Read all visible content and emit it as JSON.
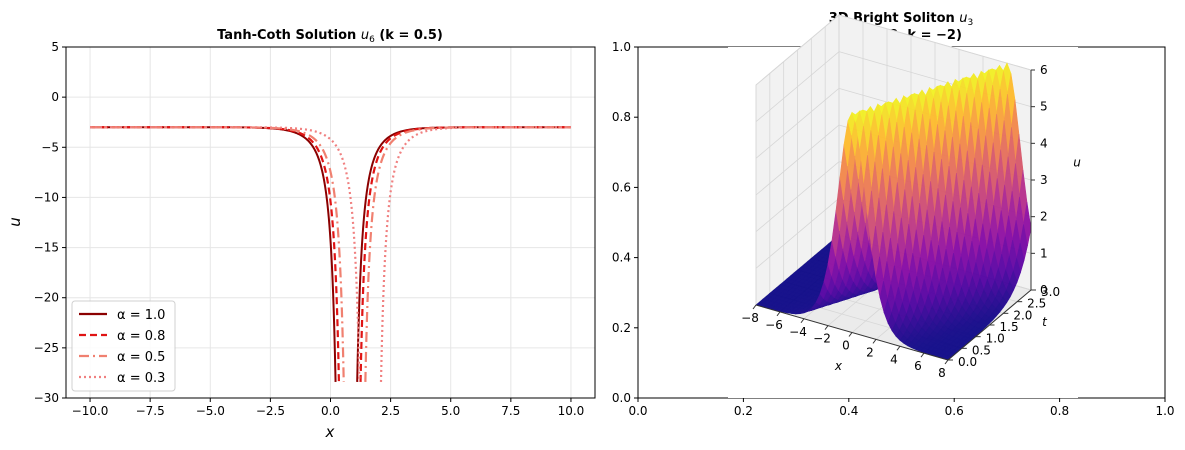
{
  "chart_data": [
    {
      "type": "line",
      "title": "Tanh-Coth Solution",
      "title_math": "u",
      "title_math_sub": "6",
      "title_param": "(k = 0.5)",
      "xlabel": "x",
      "ylabel": "u",
      "xlim": [
        -11,
        11
      ],
      "ylim": [
        -30,
        5
      ],
      "xticks": [
        -10.0,
        -7.5,
        -5.0,
        -2.5,
        0.0,
        2.5,
        5.0,
        7.5,
        10.0
      ],
      "xtick_labels": [
        "−10.0",
        "−7.5",
        "−5.0",
        "−2.5",
        "0.0",
        "2.5",
        "5.0",
        "7.5",
        "10.0"
      ],
      "yticks": [
        5,
        0,
        -5,
        -10,
        -15,
        -20,
        -25,
        -30
      ],
      "ytick_labels": [
        "5",
        "0",
        "−5",
        "−10",
        "−15",
        "−20",
        "−25",
        "−30"
      ],
      "grid": true,
      "legend": "lower-left",
      "baseline": -3,
      "curve_k": 0.75,
      "series": [
        {
          "name": "α = 1.0",
          "alpha": 1.0,
          "center": 0.66,
          "color": "#8b0000",
          "dash": "solid"
        },
        {
          "name": "α = 0.8",
          "alpha": 0.8,
          "center": 0.8,
          "color": "#e01414",
          "dash": "dashed"
        },
        {
          "name": "α = 0.5",
          "alpha": 0.5,
          "center": 1.0,
          "color": "#f08070",
          "dash": "dashdot"
        },
        {
          "name": "α = 0.3",
          "alpha": 0.3,
          "center": 1.65,
          "color": "#f08080",
          "dash": "dotted"
        }
      ]
    },
    {
      "type": "surface",
      "title": "3D Bright Soliton",
      "title_math": "u",
      "title_math_sub": "3",
      "subtitle": "(α = 0.8, k = −2)",
      "xlabel": "x",
      "ylabel": "t",
      "zlabel": "u",
      "xlim": [
        -8,
        8
      ],
      "tlim": [
        0,
        3
      ],
      "zlim": [
        0,
        6
      ],
      "xticks": [
        -8,
        -6,
        -4,
        -2,
        0,
        2,
        4,
        6,
        8
      ],
      "xtick_labels": [
        "−8",
        "−6",
        "−4",
        "−2",
        "0",
        "2",
        "4",
        "6",
        "8"
      ],
      "tticks": [
        0.0,
        0.5,
        1.0,
        1.5,
        2.0,
        2.5,
        3.0
      ],
      "ttick_labels": [
        "0.0",
        "0.5",
        "1.0",
        "1.5",
        "2.0",
        "2.5",
        "3.0"
      ],
      "zticks": [
        0,
        1,
        2,
        3,
        4,
        5,
        6
      ],
      "ztick_labels": [
        "0",
        "1",
        "2",
        "3",
        "4",
        "5",
        "6"
      ],
      "frame_xticks": [
        "0.0",
        "0.2",
        "0.4",
        "0.6",
        "0.8",
        "1.0"
      ],
      "frame_yticks": [
        "0.0",
        "0.2",
        "0.4",
        "0.6",
        "0.8",
        "1.0"
      ],
      "peak_height": 6,
      "wave_speed": 2,
      "width": 0.8,
      "colormap": "plasma"
    }
  ]
}
